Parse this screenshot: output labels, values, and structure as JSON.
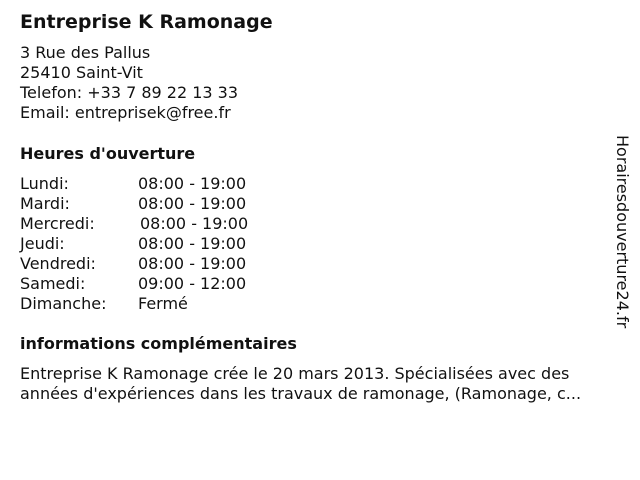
{
  "company": {
    "name": "Entreprise K Ramonage",
    "address_line1": "3 Rue des Pallus",
    "address_line2": "25410 Saint-Vit",
    "phone": "Telefon: +33 7 89 22 13 33",
    "email": "Email: entreprisek@free.fr"
  },
  "hours": {
    "heading": "Heures d'ouverture",
    "rows": [
      {
        "day": "Lundi:",
        "time": "08:00 - 19:00"
      },
      {
        "day": "Mardi:",
        "time": "08:00 - 19:00"
      },
      {
        "day": "Mercredi:",
        "time": "08:00 - 19:00"
      },
      {
        "day": "Jeudi:",
        "time": "08:00 - 19:00"
      },
      {
        "day": "Vendredi:",
        "time": "08:00 - 19:00"
      },
      {
        "day": "Samedi:",
        "time": "09:00 - 12:00"
      },
      {
        "day": "Dimanche:",
        "time": "Fermé"
      }
    ]
  },
  "info": {
    "heading": "informations complémentaires",
    "line1": "Entreprise K Ramonage crée le 20 mars 2013. Spécialisées avec des",
    "line2": "années d'expériences dans les travaux de ramonage, (Ramonage, c..."
  },
  "watermark": "Horairesdouverture24.fr"
}
